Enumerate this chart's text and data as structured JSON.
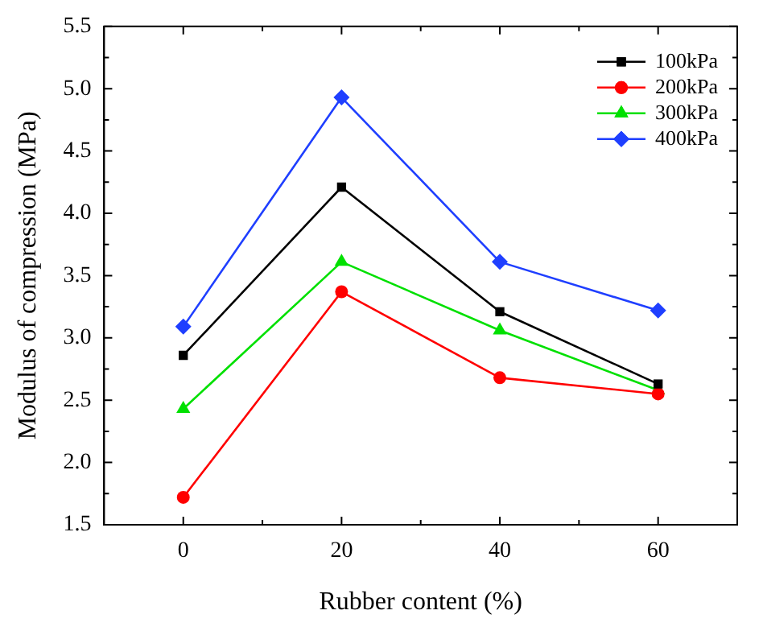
{
  "chart_data": {
    "type": "line",
    "xlabel": "Rubber content (%)",
    "ylabel": "Modulus of compression (MPa)",
    "x": [
      0,
      20,
      40,
      60
    ],
    "series": [
      {
        "name": "100kPa",
        "color": "#000000",
        "marker": "square",
        "values": [
          2.86,
          4.21,
          3.21,
          2.63
        ]
      },
      {
        "name": "200kPa",
        "color": "#ff0000",
        "marker": "circle",
        "values": [
          1.72,
          3.37,
          2.68,
          2.55
        ]
      },
      {
        "name": "300kPa",
        "color": "#00e000",
        "marker": "triangle",
        "values": [
          2.43,
          3.61,
          3.06,
          2.58
        ]
      },
      {
        "name": "400kPa",
        "color": "#1f3fff",
        "marker": "diamond",
        "values": [
          3.09,
          4.93,
          3.61,
          3.22
        ]
      }
    ],
    "xlim": [
      -10,
      70
    ],
    "xticks": [
      0,
      {
        "value": 10,
        "label": null
      },
      20,
      {
        "value": 30,
        "label": null
      },
      40,
      {
        "value": 50,
        "label": null
      },
      60
    ],
    "ylim": [
      1.5,
      5.5
    ],
    "yticks": [
      {
        "value": 1.5,
        "label": "1.5"
      },
      {
        "value": 1.75,
        "label": null
      },
      {
        "value": 2,
        "label": "2.0"
      },
      {
        "value": 2.25,
        "label": null
      },
      {
        "value": 2.5,
        "label": "2.5"
      },
      {
        "value": 2.75,
        "label": null
      },
      {
        "value": 3,
        "label": "3.0"
      },
      {
        "value": 3.25,
        "label": null
      },
      {
        "value": 3.5,
        "label": "3.5"
      },
      {
        "value": 3.75,
        "label": null
      },
      {
        "value": 4,
        "label": "4.0"
      },
      {
        "value": 4.25,
        "label": null
      },
      {
        "value": 4.5,
        "label": "4.5"
      },
      {
        "value": 4.75,
        "label": null
      },
      {
        "value": 5,
        "label": "5.0"
      },
      {
        "value": 5.25,
        "label": null
      },
      {
        "value": 5.5,
        "label": "5.5"
      }
    ],
    "grid": false,
    "legend": "top right"
  }
}
